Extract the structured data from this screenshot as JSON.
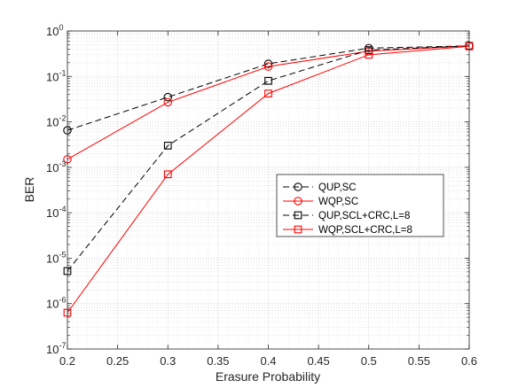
{
  "chart_data": {
    "type": "line",
    "title": "",
    "xlabel": "Erasure Probability",
    "ylabel": "BER",
    "x_scale": "linear",
    "y_scale": "log",
    "xlim": [
      0.2,
      0.6
    ],
    "ylim": [
      1e-07,
      1
    ],
    "x_ticks": [
      "0.2",
      "0.25",
      "0.3",
      "0.35",
      "0.4",
      "0.45",
      "0.5",
      "0.55",
      "0.6"
    ],
    "y_ticks": [
      {
        "base": "10",
        "exp": "0"
      },
      {
        "base": "10",
        "exp": "-1"
      },
      {
        "base": "10",
        "exp": "-2"
      },
      {
        "base": "10",
        "exp": "-3"
      },
      {
        "base": "10",
        "exp": "-4"
      },
      {
        "base": "10",
        "exp": "-5"
      },
      {
        "base": "10",
        "exp": "-6"
      },
      {
        "base": "10",
        "exp": "-7"
      }
    ],
    "grid": true,
    "minor_grid": true,
    "legend_position": "center-right",
    "x": [
      0.2,
      0.3,
      0.4,
      0.5,
      0.6
    ],
    "series": [
      {
        "name": "QUP,SC",
        "color": "#000000",
        "dash": "dashed",
        "marker": "circle",
        "values": [
          0.0065,
          0.035,
          0.19,
          0.42,
          0.47
        ]
      },
      {
        "name": "WQP,SC",
        "color": "#ff0000",
        "dash": "solid",
        "marker": "circle",
        "values": [
          0.0015,
          0.027,
          0.165,
          0.36,
          0.47
        ]
      },
      {
        "name": "QUP,SCL+CRC,L=8",
        "color": "#000000",
        "dash": "dashed",
        "marker": "square",
        "values": [
          5.2e-06,
          0.003,
          0.08,
          0.38,
          0.47
        ]
      },
      {
        "name": "WQP,SCL+CRC,L=8",
        "color": "#ff0000",
        "dash": "solid",
        "marker": "square",
        "values": [
          6.3e-07,
          0.0007,
          0.042,
          0.3,
          0.46
        ]
      }
    ]
  }
}
